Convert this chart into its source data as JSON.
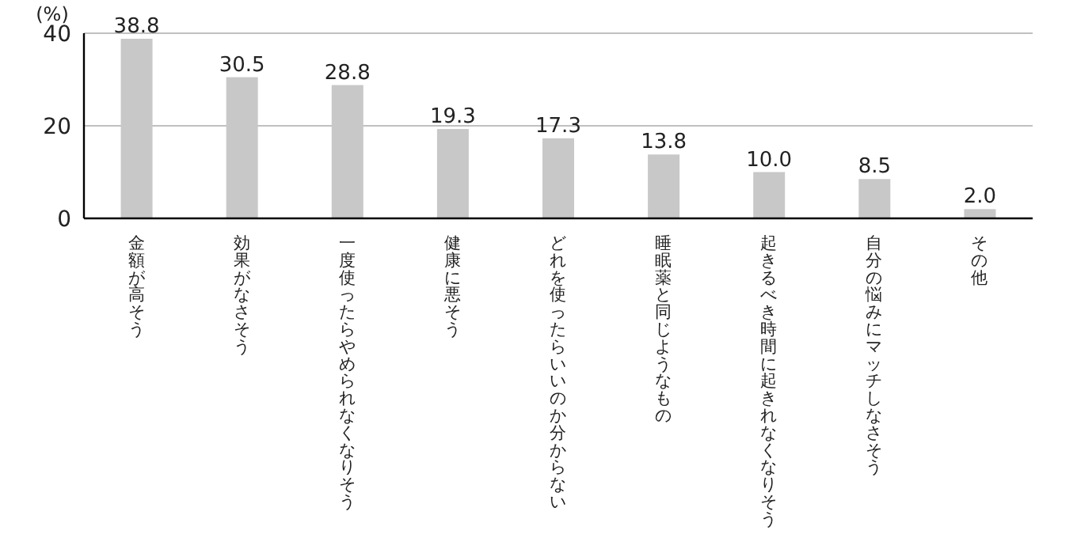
{
  "chart_data": {
    "type": "bar",
    "ylabel": "(%)",
    "categories": [
      "金額が高そう",
      "効果がなさそう",
      "一度使ったらやめられなくなりそう",
      "健康に悪そう",
      "どれを使ったらいいのか分からない",
      "睡眠薬と同じようなもの",
      "起きるべき時間に起きれなくなりそう",
      "自分の悩みにマッチしなさそう",
      "その他"
    ],
    "values": [
      38.8,
      30.5,
      28.8,
      19.3,
      17.3,
      13.8,
      10.0,
      8.5,
      2.0
    ],
    "value_labels": [
      "38.8",
      "30.5",
      "28.8",
      "19.3",
      "17.3",
      "13.8",
      "10.0",
      "8.5",
      "2.0"
    ],
    "color": "#c8c8c8",
    "ylim": [
      0,
      40
    ],
    "yticks": [
      0,
      20,
      40
    ],
    "grid": "y"
  }
}
